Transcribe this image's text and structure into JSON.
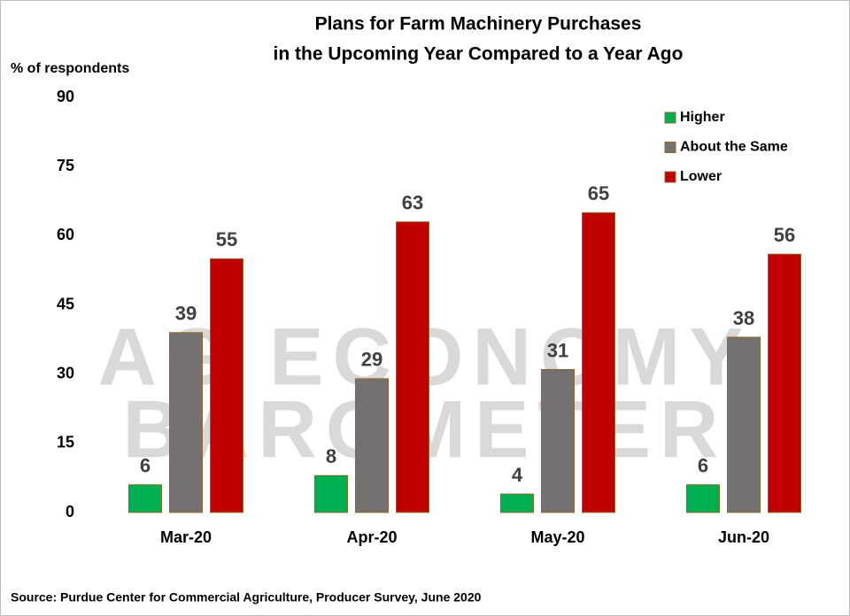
{
  "chart_data": {
    "type": "bar",
    "title": [
      "Plans for Farm Machinery Purchases",
      "in the Upcoming Year Compared to a Year Ago"
    ],
    "y_axis_label": "% of respondents",
    "source": "Source: Purdue Center for Commercial Agriculture, Producer Survey, June 2020",
    "watermark": [
      "AG ECONOMY",
      "BAROMETER"
    ],
    "categories": [
      "Mar-20",
      "Apr-20",
      "May-20",
      "Jun-20"
    ],
    "series": [
      {
        "name": "Higher",
        "color": "#00b050",
        "values": [
          6,
          8,
          4,
          6
        ]
      },
      {
        "name": "About the Same",
        "color": "#767171",
        "values": [
          39,
          29,
          31,
          38
        ]
      },
      {
        "name": "Lower",
        "color": "#c00000",
        "values": [
          55,
          63,
          65,
          56
        ]
      }
    ],
    "ylim": [
      0,
      90
    ],
    "yticks": [
      0,
      15,
      30,
      45,
      60,
      75,
      90
    ],
    "grid": false,
    "legend": "upper right"
  }
}
